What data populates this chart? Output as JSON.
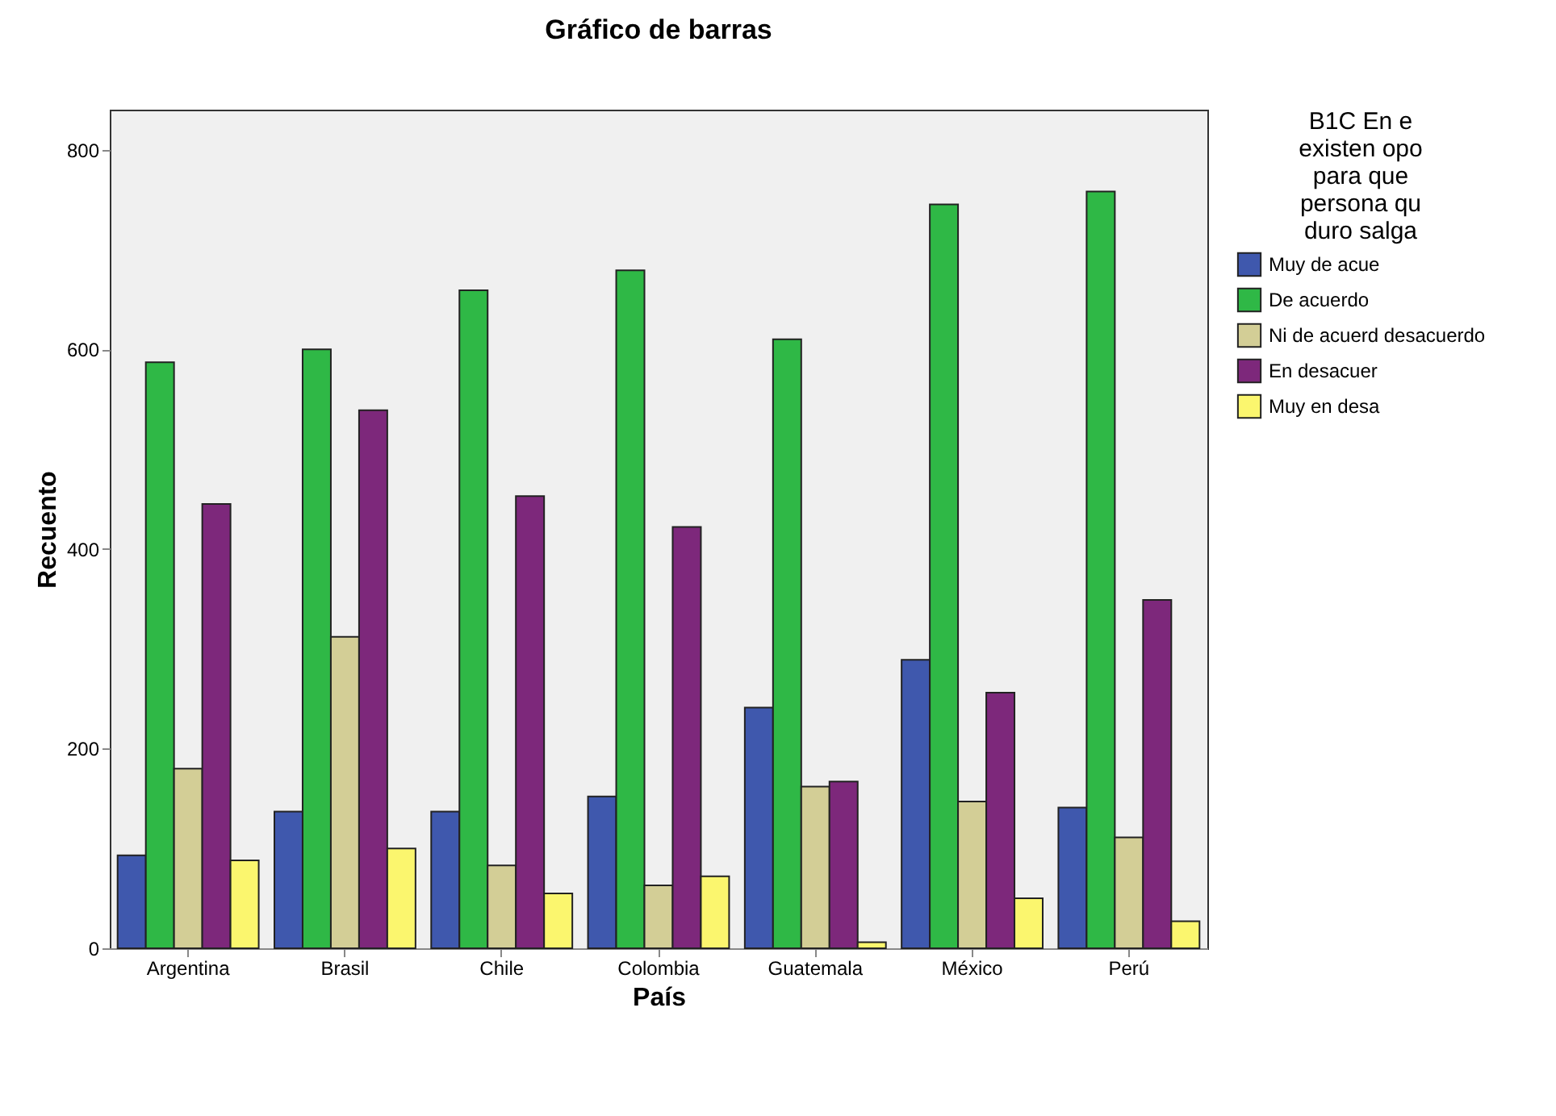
{
  "chart_data": {
    "type": "bar",
    "title": "Gráfico de barras",
    "xlabel": "País",
    "ylabel": "Recuento",
    "legend_title": "B1C En e existen opo para que persona qu duro salga",
    "legend": "right",
    "grid": false,
    "categories": [
      "Argentina",
      "Brasil",
      "Chile",
      "Colombia",
      "Guatemala",
      "México",
      "Perú"
    ],
    "ylim": [
      0,
      840
    ],
    "yticks": [
      0,
      200,
      400,
      600,
      800
    ],
    "series": [
      {
        "name": "Muy de acue",
        "color": "#3f58ad",
        "values": [
          93,
          137,
          137,
          152,
          241,
          289,
          141
        ]
      },
      {
        "name": "De acuerdo",
        "color": "#2fb846",
        "values": [
          587,
          600,
          659,
          679,
          610,
          745,
          758
        ]
      },
      {
        "name": "Ni de acuerd desacuerdo",
        "color": "#d3ce96",
        "values": [
          180,
          312,
          83,
          63,
          162,
          147,
          111
        ]
      },
      {
        "name": "En desacuer",
        "color": "#7d287b",
        "values": [
          445,
          539,
          453,
          422,
          167,
          256,
          349
        ]
      },
      {
        "name": "Muy en desa",
        "color": "#fbf66e",
        "values": [
          88,
          100,
          55,
          72,
          6,
          50,
          27
        ]
      }
    ]
  }
}
